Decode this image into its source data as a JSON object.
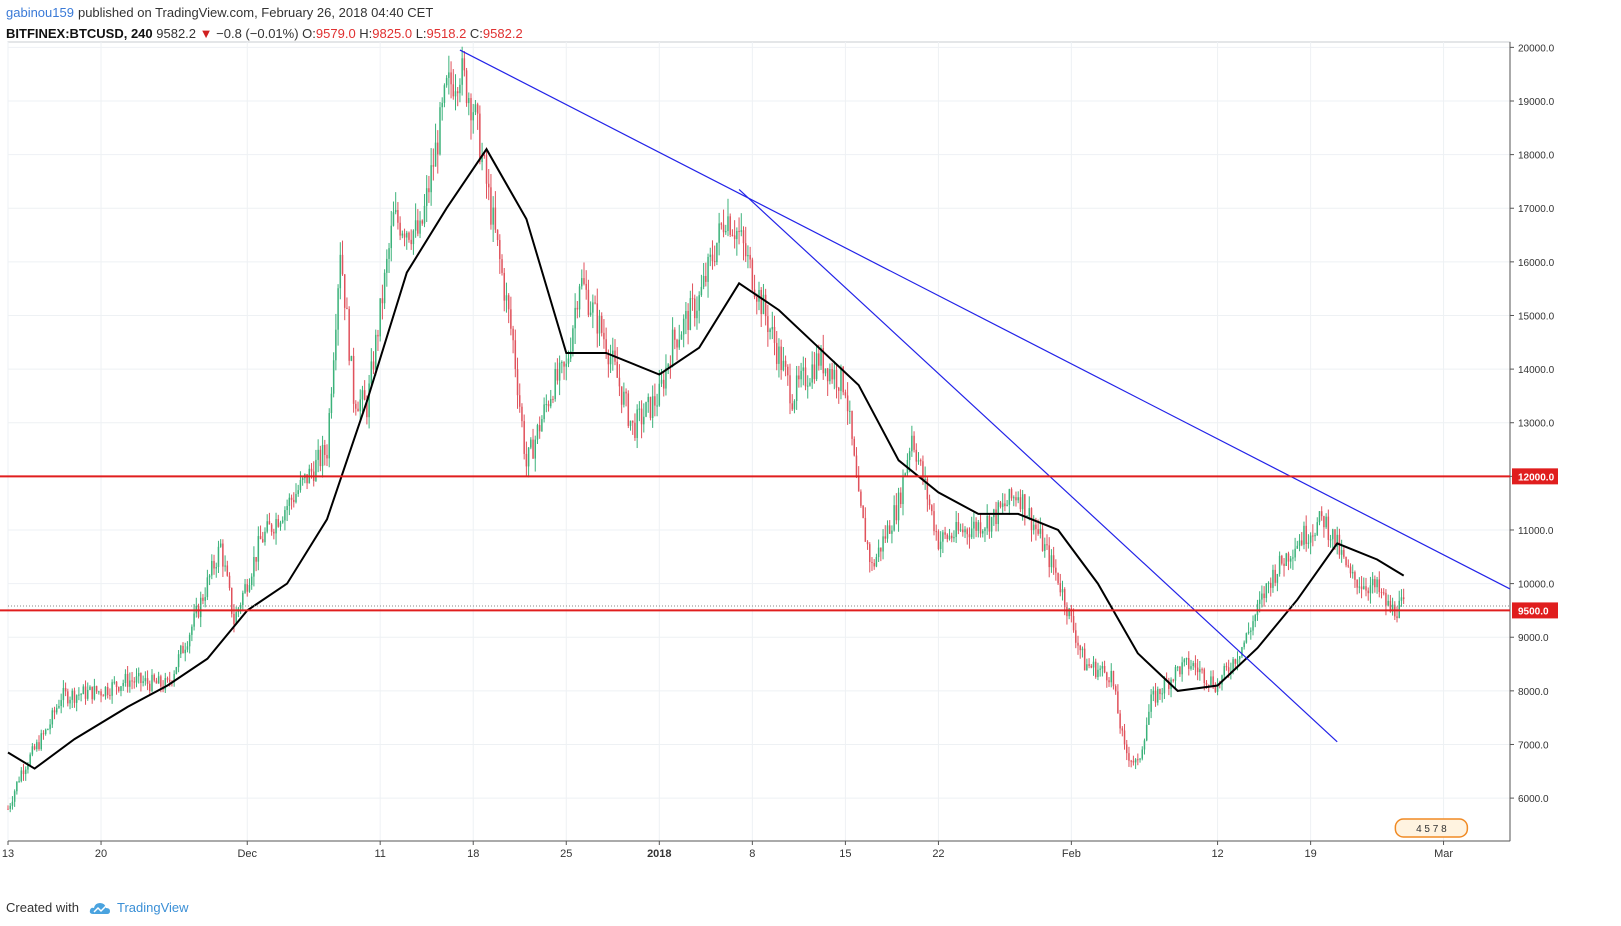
{
  "header": {
    "user": "gabinou159",
    "published": "published on TradingView.com, February 26, 2018 04:40 CET",
    "symbol": "BITFINEX:BTCUSD, 240",
    "last": "9582.2",
    "change_arrow": "▼",
    "change": "−0.8 (−0.01%)",
    "o_label": "O:",
    "o_value": "9579.0",
    "h_label": "H:",
    "h_value": "9825.0",
    "l_label": "L:",
    "l_value": "9518.2",
    "c_label": "C:",
    "c_value": "9582.2"
  },
  "footer": {
    "created_with": "Created with",
    "brand": "TradingView"
  },
  "colors": {
    "up": "#3bb27a",
    "down": "#e0525c",
    "trend": "#2323e8",
    "level": "#e01e1e",
    "ma": "#000000",
    "grid": "#eef1f4"
  },
  "chart_data": {
    "type": "line",
    "title": "BITFINEX:BTCUSD, 240",
    "xlabel": "",
    "ylabel": "",
    "ylim": [
      5200,
      20100
    ],
    "x_ticks": [
      {
        "date": "2017-11-13",
        "label": "13"
      },
      {
        "date": "2017-11-20",
        "label": "20"
      },
      {
        "date": "2017-12-01",
        "label": "Dec"
      },
      {
        "date": "2017-12-11",
        "label": "11"
      },
      {
        "date": "2017-12-18",
        "label": "18"
      },
      {
        "date": "2017-12-25",
        "label": "25"
      },
      {
        "date": "2018-01-01",
        "label": "2018",
        "bold": true
      },
      {
        "date": "2018-01-08",
        "label": "8"
      },
      {
        "date": "2018-01-15",
        "label": "15"
      },
      {
        "date": "2018-01-22",
        "label": "22"
      },
      {
        "date": "2018-02-01",
        "label": "Feb"
      },
      {
        "date": "2018-02-12",
        "label": "12"
      },
      {
        "date": "2018-02-19",
        "label": "19"
      },
      {
        "date": "2018-03-01",
        "label": "Mar"
      }
    ],
    "y_ticks": [
      6000,
      7000,
      8000,
      9000,
      10000,
      11000,
      12000,
      13000,
      14000,
      15000,
      16000,
      17000,
      18000,
      19000,
      20000
    ],
    "price_key_points": [
      [
        "2017-11-13",
        5800
      ],
      [
        "2017-11-14",
        6500
      ],
      [
        "2017-11-16",
        7300
      ],
      [
        "2017-11-17",
        7900
      ],
      [
        "2017-11-20",
        8000
      ],
      [
        "2017-11-22",
        8200
      ],
      [
        "2017-11-25",
        8100
      ],
      [
        "2017-11-27",
        9300
      ],
      [
        "2017-11-29",
        10700
      ],
      [
        "2017-11-30",
        9300
      ],
      [
        "2017-12-02",
        10800
      ],
      [
        "2017-12-05",
        11800
      ],
      [
        "2017-12-07",
        12500
      ],
      [
        "2017-12-08",
        16300
      ],
      [
        "2017-12-09",
        13500
      ],
      [
        "2017-12-10",
        13300
      ],
      [
        "2017-12-12",
        16800
      ],
      [
        "2017-12-14",
        16500
      ],
      [
        "2017-12-16",
        19200
      ],
      [
        "2017-12-17",
        19600
      ],
      [
        "2017-12-18",
        18900
      ],
      [
        "2017-12-20",
        16000
      ],
      [
        "2017-12-21",
        14500
      ],
      [
        "2017-12-22",
        12200
      ],
      [
        "2017-12-24",
        13700
      ],
      [
        "2017-12-25",
        14000
      ],
      [
        "2017-12-26",
        15700
      ],
      [
        "2017-12-28",
        14500
      ],
      [
        "2017-12-30",
        12900
      ],
      [
        "2018-01-01",
        13500
      ],
      [
        "2018-01-02",
        14500
      ],
      [
        "2018-01-04",
        15300
      ],
      [
        "2018-01-06",
        16900
      ],
      [
        "2018-01-07",
        16500
      ],
      [
        "2018-01-09",
        15000
      ],
      [
        "2018-01-11",
        13500
      ],
      [
        "2018-01-13",
        14200
      ],
      [
        "2018-01-15",
        13700
      ],
      [
        "2018-01-16",
        11500
      ],
      [
        "2018-01-17",
        10300
      ],
      [
        "2018-01-19",
        11500
      ],
      [
        "2018-01-20",
        12800
      ],
      [
        "2018-01-22",
        10800
      ],
      [
        "2018-01-24",
        11000
      ],
      [
        "2018-01-26",
        11200
      ],
      [
        "2018-01-28",
        11700
      ],
      [
        "2018-01-29",
        11200
      ],
      [
        "2018-01-31",
        10100
      ],
      [
        "2018-02-02",
        8500
      ],
      [
        "2018-02-04",
        8300
      ],
      [
        "2018-02-05",
        6900
      ],
      [
        "2018-02-06",
        6600
      ],
      [
        "2018-02-07",
        7800
      ],
      [
        "2018-02-09",
        8400
      ],
      [
        "2018-02-10",
        8500
      ],
      [
        "2018-02-12",
        8100
      ],
      [
        "2018-02-14",
        8900
      ],
      [
        "2018-02-16",
        10100
      ],
      [
        "2018-02-18",
        10800
      ],
      [
        "2018-02-20",
        11200
      ],
      [
        "2018-02-21",
        10700
      ],
      [
        "2018-02-22",
        10100
      ],
      [
        "2018-02-24",
        9900
      ],
      [
        "2018-02-25",
        9500
      ],
      [
        "2018-02-26",
        9582
      ]
    ],
    "moving_average": [
      [
        "2017-11-13",
        6850
      ],
      [
        "2017-11-15",
        6550
      ],
      [
        "2017-11-18",
        7100
      ],
      [
        "2017-11-22",
        7700
      ],
      [
        "2017-11-25",
        8100
      ],
      [
        "2017-11-28",
        8600
      ],
      [
        "2017-12-01",
        9500
      ],
      [
        "2017-12-04",
        10000
      ],
      [
        "2017-12-07",
        11200
      ],
      [
        "2017-12-10",
        13400
      ],
      [
        "2017-12-13",
        15800
      ],
      [
        "2017-12-16",
        17000
      ],
      [
        "2017-12-19",
        18100
      ],
      [
        "2017-12-22",
        16800
      ],
      [
        "2017-12-25",
        14300
      ],
      [
        "2017-12-28",
        14300
      ],
      [
        "2018-01-01",
        13900
      ],
      [
        "2018-01-04",
        14400
      ],
      [
        "2018-01-07",
        15600
      ],
      [
        "2018-01-10",
        15100
      ],
      [
        "2018-01-13",
        14400
      ],
      [
        "2018-01-16",
        13700
      ],
      [
        "2018-01-19",
        12300
      ],
      [
        "2018-01-22",
        11700
      ],
      [
        "2018-01-25",
        11300
      ],
      [
        "2018-01-28",
        11300
      ],
      [
        "2018-01-31",
        11000
      ],
      [
        "2018-02-03",
        10000
      ],
      [
        "2018-02-06",
        8700
      ],
      [
        "2018-02-09",
        8000
      ],
      [
        "2018-02-12",
        8100
      ],
      [
        "2018-02-15",
        8800
      ],
      [
        "2018-02-18",
        9700
      ],
      [
        "2018-02-21",
        10750
      ],
      [
        "2018-02-24",
        10450
      ],
      [
        "2018-02-26",
        10150
      ]
    ],
    "trendlines": [
      {
        "from": [
          "2017-12-17",
          19950
        ],
        "to": [
          "2018-03-06",
          9900
        ]
      },
      {
        "from": [
          "2018-01-07",
          17350
        ],
        "to": [
          "2018-02-21",
          7050
        ]
      }
    ],
    "horizontal_levels": [
      {
        "value": 12000,
        "label": "12000.0"
      },
      {
        "value": 9500,
        "label": "9500.0"
      }
    ],
    "last_price": 9582.2,
    "badge": "4 5 7 8"
  }
}
